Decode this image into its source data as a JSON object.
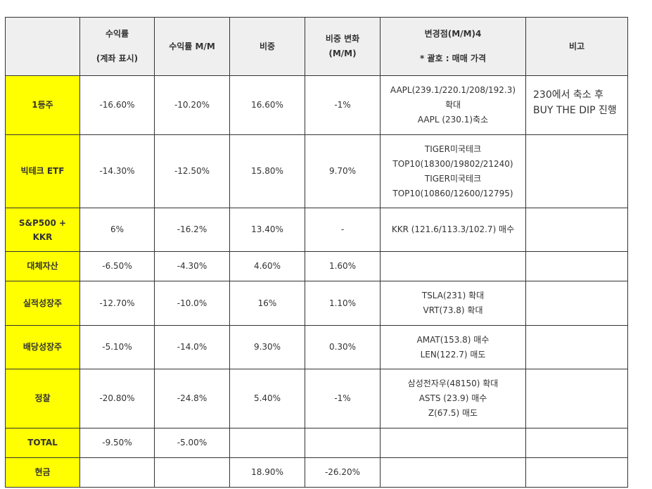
{
  "headers": {
    "col0": "",
    "col1_line1": "수익률",
    "col1_line2": "(계좌 표시)",
    "col2": "수익률 M/M",
    "col3": "비중",
    "col4_line1": "비중 변화",
    "col4_line2": "(M/M)",
    "col5_line1": "변경점(M/M)4",
    "col5_line2": "* 괄호 : 매매 가격",
    "col6": "비고"
  },
  "rows": [
    {
      "name": "1등주",
      "ret": "-16.60%",
      "ret_mm": "-10.20%",
      "weight": "16.60%",
      "weight_chg": "-1%",
      "changes": [
        "AAPL(239.1/220.1/208/192.3)",
        "확대",
        "AAPL (230.1)축소"
      ],
      "note": [
        "230에서 축소 후",
        "BUY THE DIP 진행"
      ]
    },
    {
      "name": "빅테크 ETF",
      "ret": "-14.30%",
      "ret_mm": "-12.50%",
      "weight": "15.80%",
      "weight_chg": "9.70%",
      "changes": [
        "TIGER미국테크",
        "TOP10(18300/19802/21240)",
        "TIGER미국테크",
        "TOP10(10860/12600/12795)"
      ],
      "note": []
    },
    {
      "name": "S&P500 + KKR",
      "ret": "6%",
      "ret_mm": "-16.2%",
      "weight": "13.40%",
      "weight_chg": "-",
      "changes": [
        "KKR (121.6/113.3/102.7) 매수"
      ],
      "note": []
    },
    {
      "name": "대체자산",
      "ret": "-6.50%",
      "ret_mm": "-4.30%",
      "weight": "4.60%",
      "weight_chg": "1.60%",
      "changes": [],
      "note": []
    },
    {
      "name": "실적성장주",
      "ret": "-12.70%",
      "ret_mm": "-10.0%",
      "weight": "16%",
      "weight_chg": "1.10%",
      "changes": [
        "TSLA(231) 확대",
        "VRT(73.8) 확대"
      ],
      "note": []
    },
    {
      "name": "배당성장주",
      "ret": "-5.10%",
      "ret_mm": "-14.0%",
      "weight": "9.30%",
      "weight_chg": "0.30%",
      "changes": [
        "AMAT(153.8) 매수",
        "LEN(122.7) 매도"
      ],
      "note": []
    },
    {
      "name": "정찰",
      "ret": "-20.80%",
      "ret_mm": "-24.8%",
      "weight": "5.40%",
      "weight_chg": "-1%",
      "changes": [
        "삼성전자우(48150) 확대",
        "ASTS (23.9) 매수",
        "Z(67.5) 매도"
      ],
      "note": []
    },
    {
      "name": "TOTAL",
      "ret": "-9.50%",
      "ret_mm": "-5.00%",
      "weight": "",
      "weight_chg": "",
      "changes": [],
      "note": []
    },
    {
      "name": "현금",
      "ret": "",
      "ret_mm": "",
      "weight": "18.90%",
      "weight_chg": "-26.20%",
      "changes": [],
      "note": []
    }
  ]
}
